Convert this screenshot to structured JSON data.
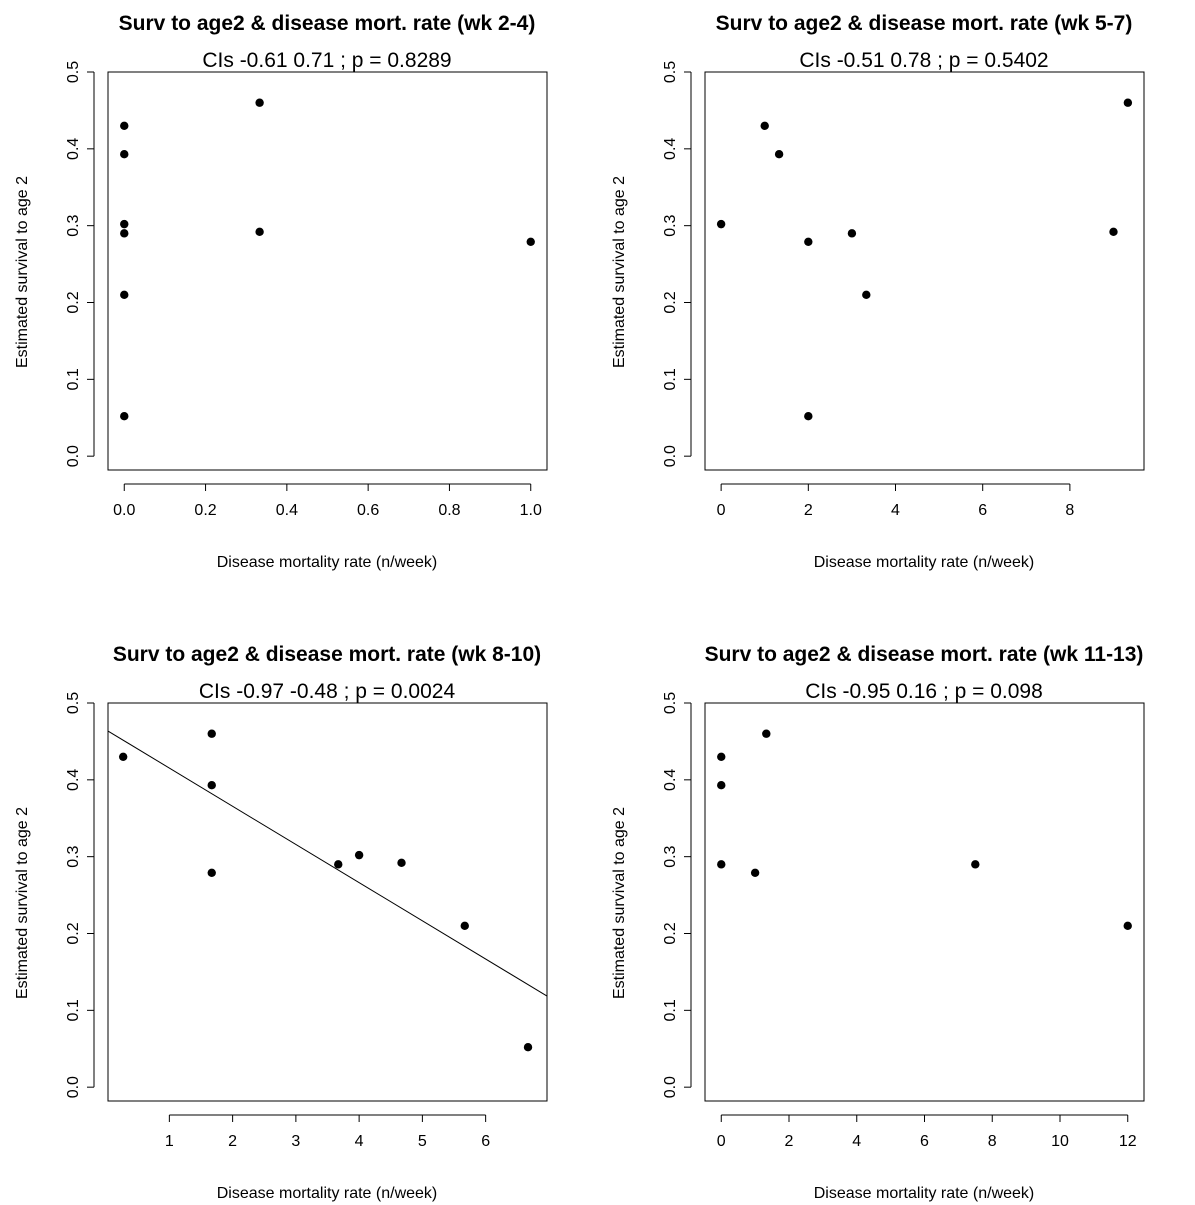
{
  "chart_data": [
    {
      "type": "scatter",
      "title": "Surv to age2 & disease mort. rate (wk 2-4)",
      "subtitle": "CIs -0.61  0.71 ; p = 0.8289",
      "xlabel": "Disease mortality rate (n/week)",
      "ylabel": "Estimated survival to age 2",
      "xlim": [
        -0.04,
        1.04
      ],
      "ylim": [
        -0.018,
        0.5
      ],
      "xticks": [
        0.0,
        0.2,
        0.4,
        0.6,
        0.8,
        1.0
      ],
      "xtick_labels": [
        "0.0",
        "0.2",
        "0.4",
        "0.6",
        "0.8",
        "1.0"
      ],
      "yticks": [
        0.0,
        0.1,
        0.2,
        0.3,
        0.4,
        0.5
      ],
      "ytick_labels": [
        "0.0",
        "0.1",
        "0.2",
        "0.3",
        "0.4",
        "0.5"
      ],
      "points": [
        {
          "x": 0.0,
          "y": 0.43
        },
        {
          "x": 0.0,
          "y": 0.393
        },
        {
          "x": 0.0,
          "y": 0.302
        },
        {
          "x": 0.0,
          "y": 0.29
        },
        {
          "x": 0.0,
          "y": 0.21
        },
        {
          "x": 0.0,
          "y": 0.052
        },
        {
          "x": 0.333,
          "y": 0.46
        },
        {
          "x": 0.333,
          "y": 0.292
        },
        {
          "x": 1.0,
          "y": 0.279
        }
      ]
    },
    {
      "type": "scatter",
      "title": "Surv to age2 & disease mort. rate (wk 5-7)",
      "subtitle": "CIs -0.51  0.78 ; p = 0.5402",
      "xlabel": "Disease mortality rate (n/week)",
      "ylabel": "Estimated survival to age 2",
      "xlim": [
        -0.37,
        9.7
      ],
      "ylim": [
        -0.018,
        0.5
      ],
      "xticks": [
        0,
        2,
        4,
        6,
        8
      ],
      "xtick_labels": [
        "0",
        "2",
        "4",
        "6",
        "8"
      ],
      "yticks": [
        0.0,
        0.1,
        0.2,
        0.3,
        0.4,
        0.5
      ],
      "ytick_labels": [
        "0.0",
        "0.1",
        "0.2",
        "0.3",
        "0.4",
        "0.5"
      ],
      "points": [
        {
          "x": 0.0,
          "y": 0.302
        },
        {
          "x": 1.0,
          "y": 0.43
        },
        {
          "x": 1.33,
          "y": 0.393
        },
        {
          "x": 2.0,
          "y": 0.279
        },
        {
          "x": 2.0,
          "y": 0.052
        },
        {
          "x": 3.0,
          "y": 0.29
        },
        {
          "x": 3.33,
          "y": 0.21
        },
        {
          "x": 9.0,
          "y": 0.292
        },
        {
          "x": 9.33,
          "y": 0.46
        }
      ]
    },
    {
      "type": "scatter",
      "title": "Surv to age2 & disease mort. rate  (wk 8-10)",
      "subtitle": "CIs -0.97 -0.48 ; p = 0.0024",
      "xlabel": "Disease mortality rate (n/week)",
      "ylabel": "Estimated survival to age 2",
      "xlim": [
        0.03,
        6.97
      ],
      "ylim": [
        -0.018,
        0.5
      ],
      "xticks": [
        1,
        2,
        3,
        4,
        5,
        6
      ],
      "xtick_labels": [
        "1",
        "2",
        "3",
        "4",
        "5",
        "6"
      ],
      "yticks": [
        0.0,
        0.1,
        0.2,
        0.3,
        0.4,
        0.5
      ],
      "ytick_labels": [
        "0.0",
        "0.1",
        "0.2",
        "0.3",
        "0.4",
        "0.5"
      ],
      "points": [
        {
          "x": 0.27,
          "y": 0.43
        },
        {
          "x": 1.67,
          "y": 0.46
        },
        {
          "x": 1.67,
          "y": 0.393
        },
        {
          "x": 1.67,
          "y": 0.279
        },
        {
          "x": 3.67,
          "y": 0.29
        },
        {
          "x": 4.0,
          "y": 0.302
        },
        {
          "x": 4.67,
          "y": 0.292
        },
        {
          "x": 5.67,
          "y": 0.21
        },
        {
          "x": 6.67,
          "y": 0.052
        }
      ],
      "fit_line": {
        "intercept": 0.465,
        "slope": -0.0497
      }
    },
    {
      "type": "scatter",
      "title": "Surv to age2 & disease mort. rate (wk 11-13)",
      "subtitle": "CIs -0.95  0.16 ; p = 0.098",
      "xlabel": "Disease mortality rate (n/week)",
      "ylabel": "Estimated survival to age 2",
      "xlim": [
        -0.48,
        12.48
      ],
      "ylim": [
        -0.018,
        0.5
      ],
      "xticks": [
        0,
        2,
        4,
        6,
        8,
        10,
        12
      ],
      "xtick_labels": [
        "0",
        "2",
        "4",
        "6",
        "8",
        "10",
        "12"
      ],
      "yticks": [
        0.0,
        0.1,
        0.2,
        0.3,
        0.4,
        0.5
      ],
      "ytick_labels": [
        "0.0",
        "0.1",
        "0.2",
        "0.3",
        "0.4",
        "0.5"
      ],
      "points": [
        {
          "x": 0.0,
          "y": 0.43
        },
        {
          "x": 0.0,
          "y": 0.393
        },
        {
          "x": 0.0,
          "y": 0.29
        },
        {
          "x": 1.0,
          "y": 0.279
        },
        {
          "x": 1.33,
          "y": 0.46
        },
        {
          "x": 7.5,
          "y": 0.29
        },
        {
          "x": 12.0,
          "y": 0.21
        }
      ]
    }
  ]
}
